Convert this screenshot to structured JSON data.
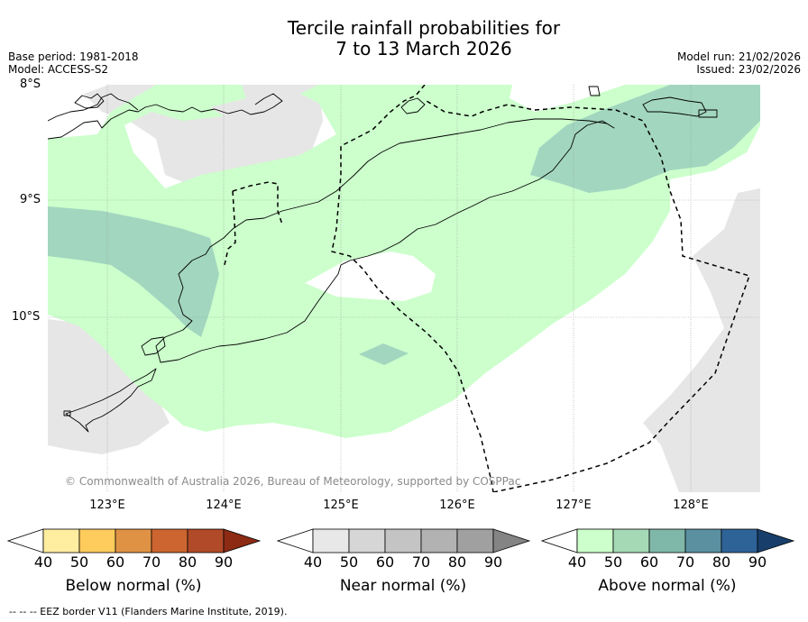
{
  "title": {
    "line1": "Tercile rainfall probabilities for",
    "line2": "7 to 13 March 2026"
  },
  "meta": {
    "base_period": "Base period: 1981-2018",
    "model": "Model: ACCESS-S2",
    "model_run": "Model run: 21/02/2026",
    "issued": "Issued: 23/02/2026"
  },
  "lat_labels": [
    "8°S",
    "9°S",
    "10°S"
  ],
  "lon_labels": [
    "123°E",
    "124°E",
    "125°E",
    "126°E",
    "127°E",
    "128°E"
  ],
  "copyright": "© Commonwealth of Australia 2026, Bureau of Meteorology, supported by COSPPac",
  "colorbars": {
    "below": {
      "title": "Below normal (%)",
      "ticks": [
        "40",
        "50",
        "60",
        "70",
        "80",
        "90"
      ],
      "colors": [
        "#ffffff",
        "#ffeda0",
        "#fecc5c",
        "#e09244",
        "#cd6530",
        "#b04a28",
        "#8c2a14"
      ]
    },
    "near": {
      "title": "Near normal (%)",
      "ticks": [
        "40",
        "50",
        "60",
        "70",
        "80",
        "90"
      ],
      "colors": [
        "#ffffff",
        "#e8e8e8",
        "#d6d6d6",
        "#c4c4c4",
        "#b2b2b2",
        "#a0a0a0",
        "#848484"
      ]
    },
    "above": {
      "title": "Above normal (%)",
      "ticks": [
        "40",
        "50",
        "60",
        "70",
        "80",
        "90"
      ],
      "colors": [
        "#ffffff",
        "#ccffcc",
        "#a5d9b6",
        "#7fb8a8",
        "#5a90a0",
        "#2e6398",
        "#183f6c"
      ]
    }
  },
  "map_colors": {
    "above_40": "#ccffcc",
    "above_50": "#a2d6bf",
    "near_40": "#e6e6e6",
    "land_outline": "#000000",
    "grid": "#9a9a9a"
  },
  "footnote": "--  --  -- EEZ border V11 (Flanders Marine Institute, 2019)."
}
